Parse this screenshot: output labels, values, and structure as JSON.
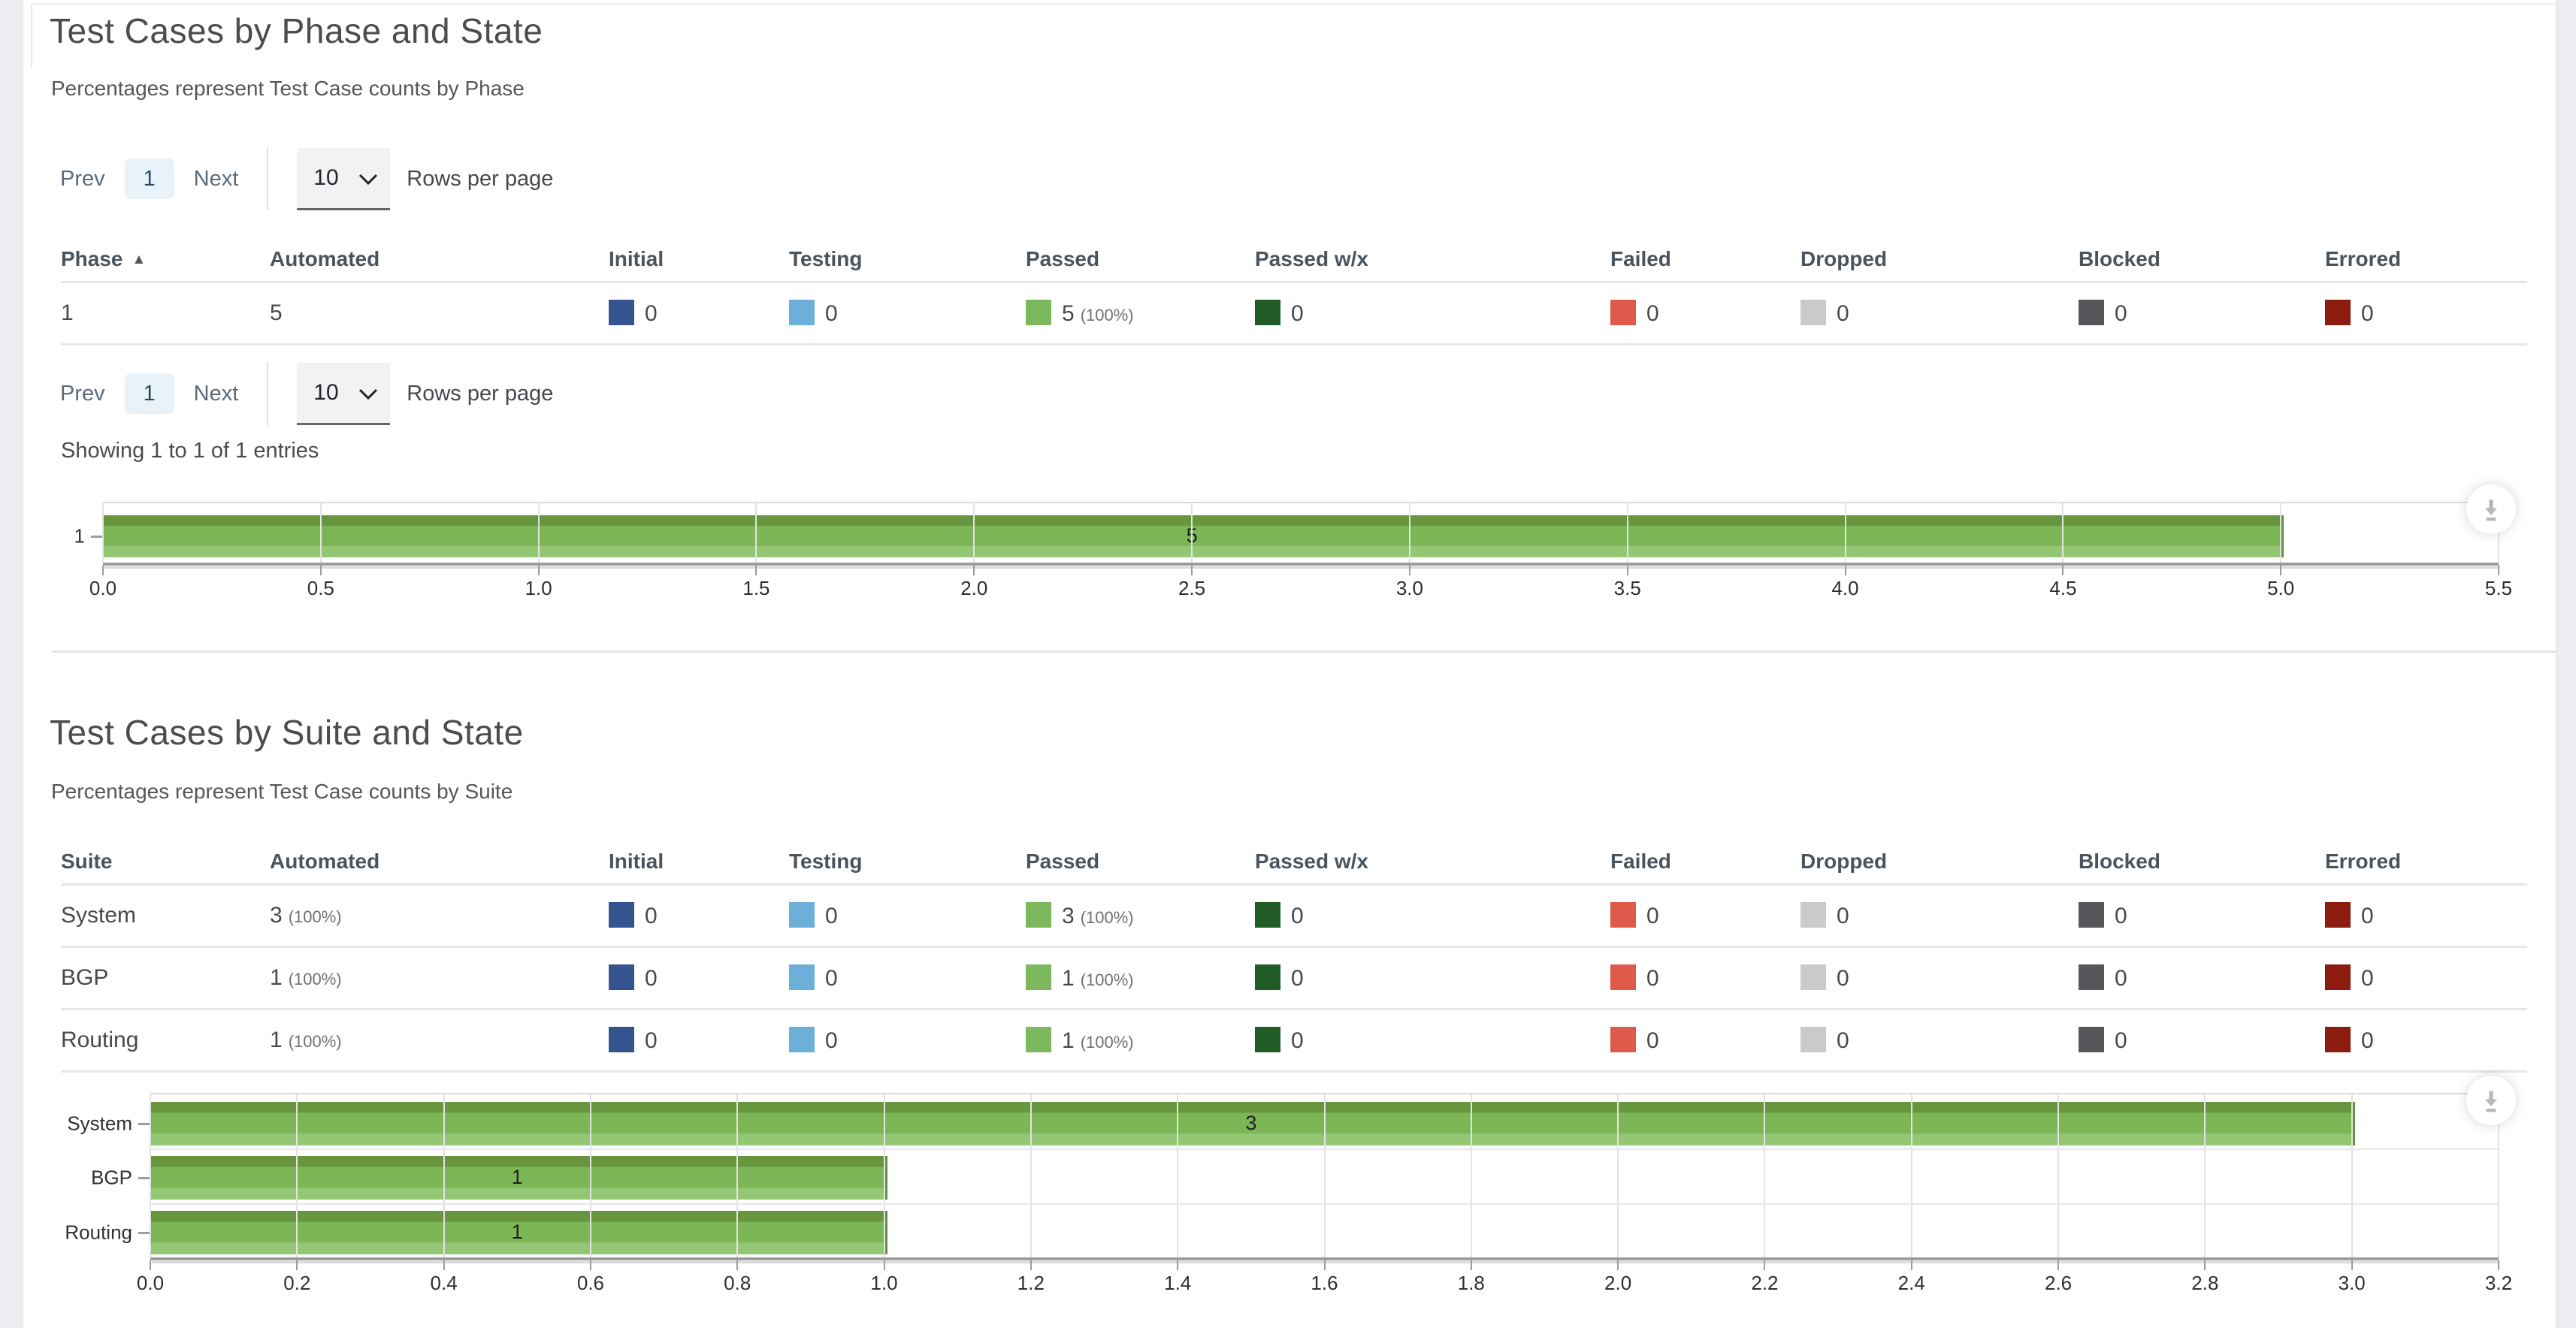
{
  "state_colors": {
    "initial": "#35538f",
    "testing": "#6cb0d9",
    "passed": "#7cb95e",
    "passed_wx": "#215c27",
    "failed": "#e05a4b",
    "dropped": "#c9cacb",
    "blocked": "#54565a",
    "errored": "#8c1b10"
  },
  "section_phase": {
    "title": "Test Cases by Phase and State",
    "subtitle": "Percentages represent Test Case counts by Phase"
  },
  "section_suite": {
    "title": "Test Cases by Suite and State",
    "subtitle": "Percentages represent Test Case counts by Suite"
  },
  "pagination": {
    "prev": "Prev",
    "page": "1",
    "next": "Next",
    "rows_per_page": "10",
    "rows_label": "Rows per page"
  },
  "summary": {
    "showing": "Showing 1 to 1 of 1 entries"
  },
  "tables": {
    "phase": {
      "columns": [
        "Phase",
        "Automated",
        "Initial",
        "Testing",
        "Passed",
        "Passed w/x",
        "Failed",
        "Dropped",
        "Blocked",
        "Errored"
      ],
      "sort_icon": "▲",
      "rows": [
        {
          "name": "1",
          "automated": "5",
          "initial": "0",
          "testing": "0",
          "passed": "5",
          "passed_pct": "(100%)",
          "passed_wx": "0",
          "failed": "0",
          "dropped": "0",
          "blocked": "0",
          "errored": "0"
        }
      ]
    },
    "suite": {
      "columns": [
        "Suite",
        "Automated",
        "Initial",
        "Testing",
        "Passed",
        "Passed w/x",
        "Failed",
        "Dropped",
        "Blocked",
        "Errored"
      ],
      "rows": [
        {
          "name": "System",
          "automated": "3",
          "automated_pct": "(100%)",
          "initial": "0",
          "testing": "0",
          "passed": "3",
          "passed_pct": "(100%)",
          "passed_wx": "0",
          "failed": "0",
          "dropped": "0",
          "blocked": "0",
          "errored": "0"
        },
        {
          "name": "BGP",
          "automated": "1",
          "automated_pct": "(100%)",
          "initial": "0",
          "testing": "0",
          "passed": "1",
          "passed_pct": "(100%)",
          "passed_wx": "0",
          "failed": "0",
          "dropped": "0",
          "blocked": "0",
          "errored": "0"
        },
        {
          "name": "Routing",
          "automated": "1",
          "automated_pct": "(100%)",
          "initial": "0",
          "testing": "0",
          "passed": "1",
          "passed_pct": "(100%)",
          "passed_wx": "0",
          "failed": "0",
          "dropped": "0",
          "blocked": "0",
          "errored": "0"
        }
      ]
    }
  },
  "charts": {
    "phase": {
      "category": "1",
      "value_label": "5",
      "ticks": [
        "0.0",
        "0.5",
        "1.0",
        "1.5",
        "2.0",
        "2.5",
        "3.0",
        "3.5",
        "4.0",
        "4.5",
        "5.0",
        "5.5"
      ]
    },
    "suite": {
      "categories": [
        "System",
        "BGP",
        "Routing"
      ],
      "value_labels": [
        "3",
        "1",
        "1"
      ],
      "ticks": [
        "0.0",
        "0.2",
        "0.4",
        "0.6",
        "0.8",
        "1.0",
        "1.2",
        "1.4",
        "1.6",
        "1.8",
        "2.0",
        "2.2",
        "2.4",
        "2.6",
        "2.8",
        "3.0",
        "3.2"
      ]
    }
  },
  "chart_data": [
    {
      "type": "bar",
      "orientation": "horizontal",
      "title": "Test Cases by Phase and State",
      "categories": [
        "1"
      ],
      "values": [
        5
      ],
      "value_labels": [
        "5"
      ],
      "xlim": [
        0,
        5.5
      ],
      "xtick_step": 0.5,
      "bar_color": "#7db657",
      "grid": true,
      "legend": false
    },
    {
      "type": "bar",
      "orientation": "horizontal",
      "title": "Test Cases by Suite and State",
      "categories": [
        "System",
        "BGP",
        "Routing"
      ],
      "values": [
        3,
        1,
        1
      ],
      "value_labels": [
        "3",
        "1",
        "1"
      ],
      "xlim": [
        0,
        3.2
      ],
      "xtick_step": 0.2,
      "bar_color": "#7db657",
      "grid": true,
      "legend": false
    }
  ],
  "icons": {
    "download": "arrow-down-to-bar in circle",
    "chevron_down": "v stroke",
    "sort_ascending": "filled triangle up"
  }
}
